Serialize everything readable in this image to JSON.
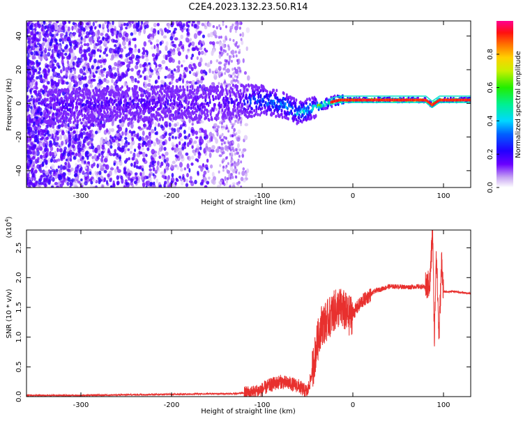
{
  "page_title": "C2E4.2023.132.23.50.R14",
  "chart_data": [
    {
      "type": "heatmap",
      "title": "C2E4.2023.132.23.50.R14",
      "xlabel": "Height of straight line (km)",
      "ylabel": "Frequency (Hz)",
      "xlim": [
        -360,
        130
      ],
      "ylim": [
        -50,
        49
      ],
      "xticks": [
        -300,
        -200,
        -100,
        0,
        100
      ],
      "yticks": [
        -40,
        -20,
        0,
        20,
        40
      ],
      "colorbar": {
        "label": "Normalized spectral amplitude",
        "ticks": [
          "0.0",
          "0.2",
          "0.4",
          "0.6",
          "0.8"
        ],
        "range": [
          0,
          1
        ]
      },
      "ridge": {
        "description_points_x": [
          -330,
          -250,
          -150,
          -100,
          -75,
          -60,
          -45,
          -30,
          -15,
          0,
          80,
          87,
          95,
          130
        ],
        "description_points_y": [
          -2,
          0,
          0,
          2,
          -1,
          -6,
          -3,
          0,
          2,
          2,
          2,
          -1,
          2,
          2
        ]
      }
    },
    {
      "type": "line",
      "xlabel": "Height of straight line (km)",
      "ylabel": "SNR (10 * v/v)",
      "y_multiplier": "(x10",
      "y_multiplier_exp": "4",
      "y_multiplier_close": ")",
      "xlim": [
        -360,
        130
      ],
      "ylim": [
        0,
        2.8
      ],
      "xticks": [
        -300,
        -200,
        -100,
        0,
        100
      ],
      "yticks": [
        "0.0",
        "0.5",
        "1.0",
        "1.5",
        "2.0",
        "2.5"
      ],
      "series": [
        {
          "color": "#e8302e",
          "x": [
            -360,
            -300,
            -200,
            -130,
            -110,
            -100,
            -90,
            -80,
            -70,
            -60,
            -55,
            -50,
            -45,
            -40,
            -35,
            -30,
            -25,
            -20,
            -15,
            -10,
            -5,
            0,
            5,
            10,
            15,
            20,
            25,
            30,
            40,
            50,
            60,
            70,
            80,
            85,
            88,
            90,
            92,
            95,
            98,
            100,
            105,
            110,
            120,
            130
          ],
          "y": [
            0.02,
            0.02,
            0.04,
            0.05,
            0.07,
            0.12,
            0.2,
            0.25,
            0.22,
            0.18,
            0.12,
            0.08,
            0.4,
            0.85,
            1.2,
            1.25,
            1.35,
            1.45,
            1.5,
            1.45,
            1.35,
            1.4,
            1.5,
            1.6,
            1.66,
            1.72,
            1.78,
            1.8,
            1.85,
            1.85,
            1.84,
            1.85,
            1.84,
            1.9,
            2.8,
            0.95,
            2.5,
            1.0,
            2.3,
            1.76,
            1.76,
            1.77,
            1.75,
            1.73
          ]
        }
      ]
    }
  ]
}
